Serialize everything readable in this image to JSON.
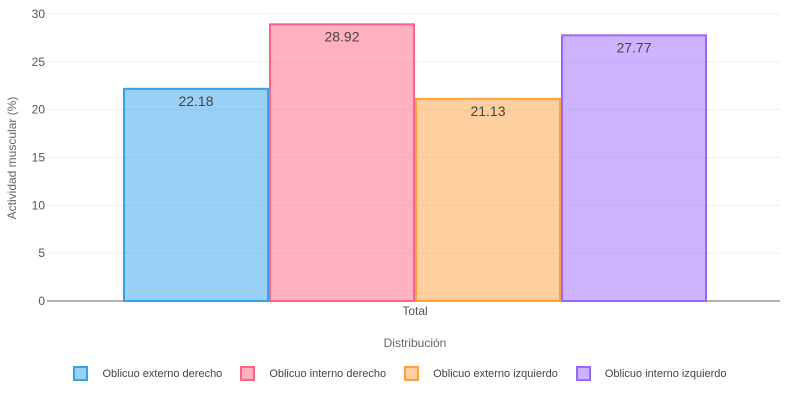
{
  "chart_data": {
    "type": "bar",
    "categories": [
      "Total"
    ],
    "series": [
      {
        "name": "Oblicuo externo derecho",
        "values": [
          22.18
        ],
        "label": "22.18",
        "color": "#36a2eb"
      },
      {
        "name": "Oblicuo interno derecho",
        "values": [
          28.92
        ],
        "label": "28.92",
        "color": "#ff6384"
      },
      {
        "name": "Oblicuo externo izquierdo",
        "values": [
          21.13
        ],
        "label": "21.13",
        "color": "#ff9f40"
      },
      {
        "name": "Oblicuo interno izquierdo",
        "values": [
          27.77
        ],
        "label": "27.77",
        "color": "#9966ff"
      }
    ],
    "title": "",
    "xlabel": "Distribución",
    "ylabel": "Actividad muscular (%)",
    "ylim": [
      0,
      30
    ],
    "yticks": [
      "0",
      "5",
      "10",
      "15",
      "20",
      "25",
      "30"
    ],
    "grid": true,
    "legend_position": "bottom"
  }
}
